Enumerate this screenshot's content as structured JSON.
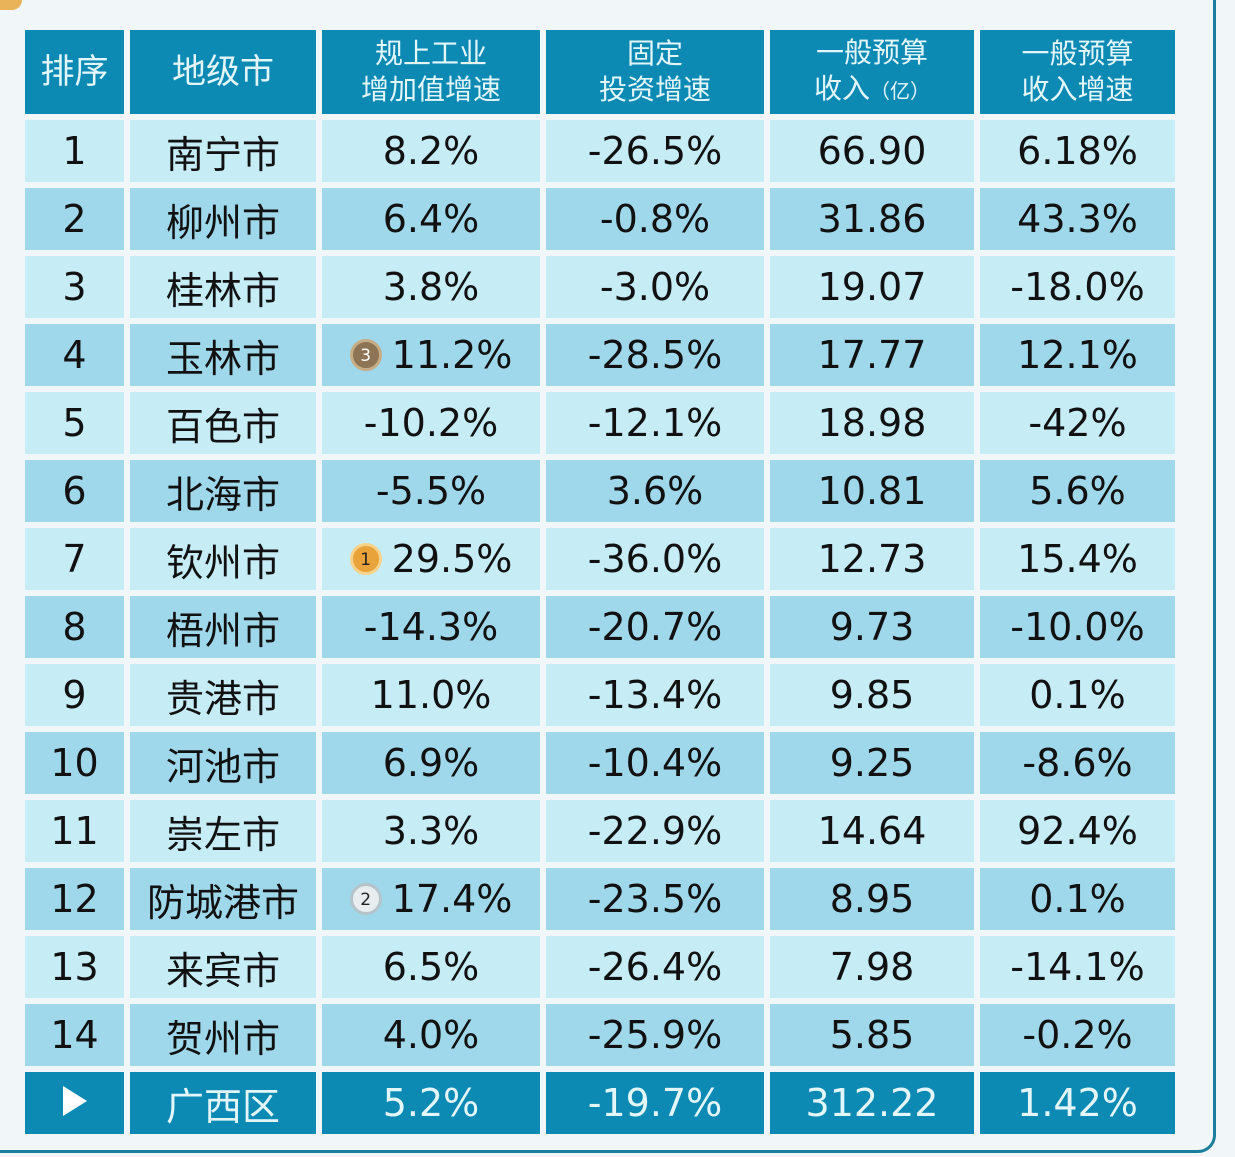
{
  "headers": {
    "rank": "排序",
    "city": "地级市",
    "industry_l1": "规上工业",
    "industry_l2": "增加值增速",
    "fixed_l1": "固定",
    "fixed_l2": "投资增速",
    "budget_l1": "一般预算",
    "budget_l2": "收入",
    "budget_unit": "（亿）",
    "budget_growth_l1": "一般预算",
    "budget_growth_l2": "收入增速"
  },
  "rows": [
    {
      "rank": "1",
      "city": "南宁市",
      "industry": "8.2%",
      "fixed": "-26.5%",
      "budget": "66.90",
      "budget_growth": "6.18%"
    },
    {
      "rank": "2",
      "city": "柳州市",
      "industry": "6.4%",
      "fixed": "-0.8%",
      "budget": "31.86",
      "budget_growth": "43.3%"
    },
    {
      "rank": "3",
      "city": "桂林市",
      "industry": "3.8%",
      "fixed": "-3.0%",
      "budget": "19.07",
      "budget_growth": "-18.0%"
    },
    {
      "rank": "4",
      "city": "玉林市",
      "industry": "11.2%",
      "medal": "3",
      "fixed": "-28.5%",
      "budget": "17.77",
      "budget_growth": "12.1%"
    },
    {
      "rank": "5",
      "city": "百色市",
      "industry": "-10.2%",
      "fixed": "-12.1%",
      "budget": "18.98",
      "budget_growth": "-42%"
    },
    {
      "rank": "6",
      "city": "北海市",
      "industry": "-5.5%",
      "fixed": "3.6%",
      "budget": "10.81",
      "budget_growth": "5.6%"
    },
    {
      "rank": "7",
      "city": "钦州市",
      "industry": "29.5%",
      "medal": "1",
      "fixed": "-36.0%",
      "budget": "12.73",
      "budget_growth": "15.4%"
    },
    {
      "rank": "8",
      "city": "梧州市",
      "industry": "-14.3%",
      "fixed": "-20.7%",
      "budget": "9.73",
      "budget_growth": "-10.0%"
    },
    {
      "rank": "9",
      "city": "贵港市",
      "industry": "11.0%",
      "fixed": "-13.4%",
      "budget": "9.85",
      "budget_growth": "0.1%"
    },
    {
      "rank": "10",
      "city": "河池市",
      "industry": "6.9%",
      "fixed": "-10.4%",
      "budget": "9.25",
      "budget_growth": "-8.6%"
    },
    {
      "rank": "11",
      "city": "崇左市",
      "industry": "3.3%",
      "fixed": "-22.9%",
      "budget": "14.64",
      "budget_growth": "92.4%"
    },
    {
      "rank": "12",
      "city": "防城港市",
      "industry": "17.4%",
      "medal": "2",
      "fixed": "-23.5%",
      "budget": "8.95",
      "budget_growth": "0.1%"
    },
    {
      "rank": "13",
      "city": "来宾市",
      "industry": "6.5%",
      "fixed": "-26.4%",
      "budget": "7.98",
      "budget_growth": "-14.1%"
    },
    {
      "rank": "14",
      "city": "贺州市",
      "industry": "4.0%",
      "fixed": "-25.9%",
      "budget": "5.85",
      "budget_growth": "-0.2%"
    }
  ],
  "total": {
    "icon": "play-icon",
    "city": "广西区",
    "industry": "5.2%",
    "fixed": "-19.7%",
    "budget": "312.22",
    "budget_growth": "1.42%"
  },
  "colors": {
    "header": "#0d8ab3",
    "row_light": "#c6ecf5",
    "row_dark": "#9fd8ea",
    "gold": "#e9a33b",
    "silver": "#e8eef0",
    "bronze": "#8d7454"
  }
}
